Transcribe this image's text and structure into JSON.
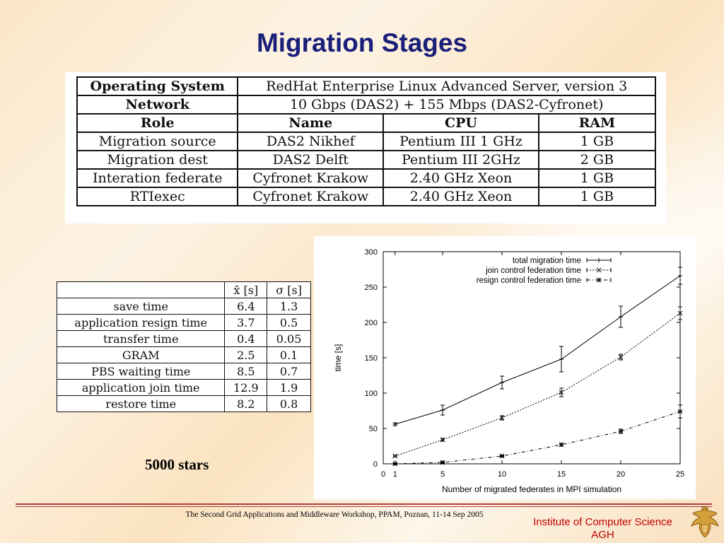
{
  "slide": {
    "title": "Migration Stages",
    "stars_caption": "5000 stars",
    "footer_conference": "The Second Grid Applications and Middleware Workshop,  PPAM, Poznan, 11-14 Sep 2005",
    "institute_line1": "Institute of Computer Science",
    "institute_line2": "AGH",
    "accent_color": "#1a1f7a",
    "footer_color": "#c00000"
  },
  "env_table": {
    "os_label": "Operating System",
    "os_value": "RedHat Enterprise Linux Advanced Server, version 3",
    "network_label": "Network",
    "network_value": "10 Gbps (DAS2) + 155 Mbps (DAS2-Cyfronet)",
    "headers": [
      "Role",
      "Name",
      "CPU",
      "RAM"
    ],
    "rows": [
      [
        "Migration source",
        "DAS2 Nikhef",
        "Pentium III 1 GHz",
        "1 GB"
      ],
      [
        "Migration dest",
        "DAS2 Delft",
        "Pentium III 2GHz",
        "2 GB"
      ],
      [
        "Interation federate",
        "Cyfronet Krakow",
        "2.40 GHz Xeon",
        "1 GB"
      ],
      [
        "RTIexec",
        "Cyfronet Krakow",
        "2.40 GHz Xeon",
        "1 GB"
      ]
    ]
  },
  "stats_table": {
    "headers": [
      "",
      "x̄ [s]",
      "σ [s]"
    ],
    "rows": [
      [
        "save time",
        "6.4",
        "1.3"
      ],
      [
        "application resign time",
        "3.7",
        "0.5"
      ],
      [
        "transfer time",
        "0.4",
        "0.05"
      ],
      [
        "GRAM",
        "2.5",
        "0.1"
      ],
      [
        "PBS waiting time",
        "8.5",
        "0.7"
      ],
      [
        "application join time",
        "12.9",
        "1.9"
      ],
      [
        "restore time",
        "8.2",
        "0.8"
      ]
    ]
  },
  "chart_data": {
    "type": "line",
    "title": "",
    "xlabel": "Number of migrated federates in MPI simulation",
    "ylabel": "time [s]",
    "xlim": [
      0,
      25
    ],
    "ylim": [
      0,
      300
    ],
    "xticks": [
      0,
      1,
      5,
      10,
      15,
      20,
      25
    ],
    "yticks": [
      0,
      50,
      100,
      150,
      200,
      250,
      300
    ],
    "grid": false,
    "legend_position": "top-right",
    "x": [
      1,
      5,
      10,
      15,
      20,
      25
    ],
    "series": [
      {
        "name": "total migration time",
        "values": [
          56,
          76,
          115,
          148,
          208,
          266
        ],
        "errors": [
          2,
          7,
          9,
          18,
          15,
          12
        ],
        "marker": "+"
      },
      {
        "name": "join control federation time",
        "values": [
          11,
          34,
          65,
          101,
          151,
          213
        ],
        "errors": [
          1,
          2,
          3,
          6,
          4,
          9
        ],
        "marker": "x"
      },
      {
        "name": "resign control  federation time",
        "values": [
          0,
          2,
          11,
          27,
          46,
          74
        ],
        "errors": [
          1,
          1,
          1,
          2,
          3,
          9
        ],
        "marker": "*"
      }
    ]
  }
}
